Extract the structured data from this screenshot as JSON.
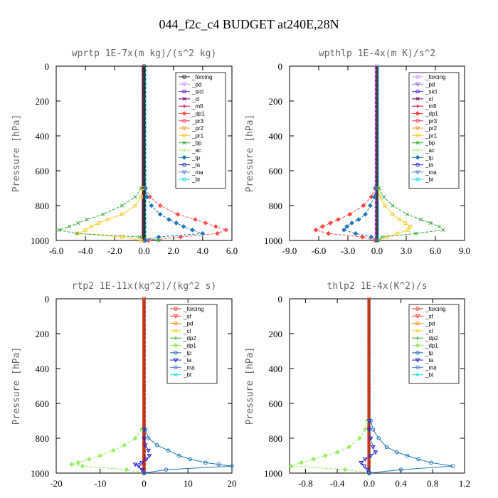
{
  "figure": {
    "title": "044_f2c_c4  BUDGET at240E,28N"
  },
  "chart_data": [
    {
      "type": "line",
      "title": "wprtp  1E-7x(m kg)/(s^2 kg)",
      "ylabel": "Pressure [hPa]",
      "xlim": [
        -6,
        6
      ],
      "ylim": [
        1000,
        0
      ],
      "xticks": [
        -6,
        -4,
        -2,
        0,
        2,
        4,
        6
      ],
      "xtick_labels": [
        "-6.0",
        "-4.0",
        "-2.0",
        "0.0",
        "2.0",
        "4.0",
        "6.0"
      ],
      "yticks": [
        0,
        200,
        400,
        600,
        800,
        1000
      ],
      "ytick_labels": [
        "0",
        "200",
        "400",
        "600",
        "800",
        "1000"
      ],
      "grid": false,
      "legend_position": "top-right",
      "levels": [
        700,
        750,
        800,
        850,
        880,
        900,
        920,
        940,
        960,
        980,
        1000
      ],
      "series": [
        {
          "name": "_forcing",
          "color": "#222222",
          "values": [
            0,
            0,
            0,
            0,
            0,
            0,
            0,
            0,
            0,
            0,
            0
          ]
        },
        {
          "name": "_pd",
          "color": "#cc99ff",
          "values": [
            0,
            0,
            0,
            0,
            0,
            0,
            0,
            0,
            0,
            0,
            0
          ]
        },
        {
          "name": "_sicl",
          "color": "#6633cc",
          "values": [
            0,
            0,
            0,
            0,
            0,
            0,
            0,
            0,
            0,
            0,
            0
          ]
        },
        {
          "name": "_cl",
          "color": "#660066",
          "values": [
            0,
            0,
            0,
            0,
            0,
            0,
            0,
            0,
            0,
            0,
            0
          ]
        },
        {
          "name": "_mfl",
          "color": "#cc0044",
          "values": [
            0,
            0,
            0,
            0,
            0,
            0,
            0,
            0,
            0,
            0,
            0
          ]
        },
        {
          "name": "_dp1",
          "color": "#ff5555",
          "values": [
            0.1,
            0.4,
            1.1,
            2.3,
            3.5,
            4.2,
            4.9,
            5.6,
            5.0,
            2.5,
            0.3
          ]
        },
        {
          "name": "_pr3",
          "color": "#ff3366",
          "values": [
            0,
            0,
            0,
            0,
            0,
            0,
            0,
            0,
            0,
            0,
            0
          ]
        },
        {
          "name": "_pr2",
          "color": "#ff9933",
          "values": [
            0,
            0,
            0,
            0,
            0,
            0,
            0,
            0,
            0,
            0,
            0
          ]
        },
        {
          "name": "_pr1",
          "color": "#ffcc33",
          "values": [
            -0.1,
            -0.2,
            -0.6,
            -1.5,
            -2.5,
            -3.1,
            -3.6,
            -4.0,
            -4.5,
            -1.5,
            -0.2
          ]
        },
        {
          "name": "_bp",
          "color": "#33aa33",
          "values": [
            -0.2,
            -0.6,
            -1.5,
            -2.8,
            -3.9,
            -4.5,
            -5.1,
            -5.8,
            -4.6,
            -0.3,
            1.0
          ]
        },
        {
          "name": "_ac",
          "color": "#99ee66",
          "values": [
            0,
            0,
            0,
            0,
            0,
            0,
            0,
            0,
            0,
            0,
            0
          ]
        },
        {
          "name": "_tp",
          "color": "#2277bb",
          "values": [
            0.1,
            0.2,
            0.5,
            1.1,
            1.7,
            2.2,
            2.7,
            3.3,
            4.0,
            1.0,
            0.1
          ]
        },
        {
          "name": "_ta",
          "color": "#2222cc",
          "values": [
            0,
            0,
            0,
            0,
            0,
            0,
            0,
            0,
            0,
            0,
            0
          ]
        },
        {
          "name": "_ma",
          "color": "#5588cc",
          "values": [
            0,
            0,
            0,
            0,
            0,
            0,
            0,
            0,
            0,
            0,
            0
          ]
        },
        {
          "name": "_bt",
          "color": "#22ddee",
          "values": [
            0,
            0,
            0,
            0,
            0,
            0,
            0,
            0,
            0,
            0,
            0
          ]
        }
      ]
    },
    {
      "type": "line",
      "title": "wpthlp  1E-4x(m K)/s^2",
      "ylabel": "Pressure [hPa]",
      "xlim": [
        -9,
        9
      ],
      "ylim": [
        1000,
        0
      ],
      "xticks": [
        -9,
        -6,
        -3,
        0,
        3,
        6,
        9
      ],
      "xtick_labels": [
        "-9.0",
        "-6.0",
        "-3.0",
        "0.0",
        "3.0",
        "6.0",
        "9.0"
      ],
      "yticks": [
        0,
        200,
        400,
        600,
        800,
        1000
      ],
      "ytick_labels": [
        "0",
        "200",
        "400",
        "600",
        "800",
        "1000"
      ],
      "grid": false,
      "legend_position": "top-right",
      "levels": [
        700,
        750,
        800,
        850,
        880,
        900,
        920,
        940,
        960,
        980,
        1000
      ],
      "series": [
        {
          "name": "_forcing",
          "color": "#cc99ff",
          "values": [
            0,
            0,
            0,
            0,
            0,
            0,
            0,
            0,
            0,
            0,
            0
          ]
        },
        {
          "name": "_pd",
          "color": "#9966cc",
          "values": [
            0,
            0,
            0,
            0,
            0,
            0,
            0,
            0,
            0,
            0,
            0
          ]
        },
        {
          "name": "_sicl",
          "color": "#6633cc",
          "values": [
            0,
            0,
            0,
            0,
            0,
            0,
            0,
            0,
            0,
            0,
            0
          ]
        },
        {
          "name": "_cl",
          "color": "#660066",
          "values": [
            0,
            0,
            0,
            0,
            0,
            0,
            0,
            0,
            0,
            0,
            0
          ]
        },
        {
          "name": "_mfl",
          "color": "#cc0044",
          "values": [
            0,
            0,
            0,
            0,
            0,
            0,
            0,
            0,
            0,
            0,
            0
          ]
        },
        {
          "name": "_dp1",
          "color": "#ff4444",
          "values": [
            -0.2,
            -0.6,
            -1.4,
            -2.8,
            -4.0,
            -4.8,
            -5.6,
            -6.3,
            -5.0,
            -1.5,
            -0.2
          ]
        },
        {
          "name": "_pr3",
          "color": "#ff3366",
          "values": [
            0,
            0,
            0,
            0,
            0,
            0,
            0,
            0,
            0,
            0,
            0
          ]
        },
        {
          "name": "_pr2",
          "color": "#ff9933",
          "values": [
            0,
            0,
            0,
            0,
            0,
            0,
            0,
            0,
            0,
            0,
            0
          ]
        },
        {
          "name": "_pr1",
          "color": "#ffcc33",
          "values": [
            0.1,
            0.3,
            0.8,
            1.6,
            2.3,
            2.9,
            3.4,
            3.2,
            2.1,
            1.0,
            0.1
          ]
        },
        {
          "name": "_bp",
          "color": "#33aa33",
          "values": [
            0.2,
            0.7,
            1.6,
            3.1,
            4.5,
            5.5,
            6.4,
            6.8,
            4.0,
            0.5,
            0.1
          ]
        },
        {
          "name": "_ac",
          "color": "#99ee66",
          "values": [
            0,
            0,
            0,
            0,
            0,
            0,
            0,
            0,
            0,
            0,
            0
          ]
        },
        {
          "name": "_tp",
          "color": "#2277bb",
          "values": [
            -0.1,
            -0.3,
            -0.7,
            -1.2,
            -1.9,
            -2.6,
            -3.1,
            -3.4,
            -2.2,
            -0.6,
            0
          ]
        },
        {
          "name": "_ta",
          "color": "#2222cc",
          "values": [
            0,
            0,
            0,
            0,
            0,
            0,
            0,
            0,
            0,
            0,
            0
          ]
        },
        {
          "name": "_ma",
          "color": "#5588cc",
          "values": [
            0,
            0,
            0,
            0,
            0,
            0,
            0,
            0,
            0,
            0,
            0
          ]
        },
        {
          "name": "_bt",
          "color": "#22ddee",
          "values": [
            0,
            0,
            0,
            0,
            0,
            0,
            0,
            0,
            0,
            0,
            0
          ]
        }
      ]
    },
    {
      "type": "line",
      "title": "rtp2  1E-11x(kg^2)/(kg^2 s)",
      "ylabel": "Pressure [hPa]",
      "xlim": [
        -20,
        20
      ],
      "ylim": [
        1000,
        0
      ],
      "xticks": [
        -20,
        -10,
        0,
        10,
        20
      ],
      "xtick_labels": [
        "-20",
        "-10",
        "0",
        "10",
        "20"
      ],
      "yticks": [
        0,
        200,
        400,
        600,
        800,
        1000
      ],
      "ytick_labels": [
        "0",
        "200",
        "400",
        "600",
        "800",
        "1000"
      ],
      "grid": false,
      "legend_position": "top-right",
      "levels": [
        750,
        800,
        840,
        870,
        900,
        920,
        940,
        950,
        960,
        980,
        1000
      ],
      "series": [
        {
          "name": "_forcing",
          "color": "#dd4433",
          "values": [
            0,
            0,
            0,
            0,
            0,
            0,
            0,
            0,
            0,
            0,
            0
          ]
        },
        {
          "name": "_sf",
          "color": "#ff3333",
          "values": [
            0,
            0,
            0,
            0,
            0,
            0,
            0,
            0,
            0,
            0,
            0
          ]
        },
        {
          "name": "_pd",
          "color": "#ff9933",
          "values": [
            0,
            0,
            0,
            0,
            0,
            0,
            0,
            0,
            0,
            0,
            0
          ]
        },
        {
          "name": "_cl",
          "color": "#ffcc33",
          "values": [
            0,
            0,
            0,
            0,
            0,
            0,
            0,
            0,
            0,
            0,
            0
          ]
        },
        {
          "name": "_dp2",
          "color": "#33aa33",
          "values": [
            0,
            0,
            0,
            0,
            0,
            0,
            0,
            0,
            0,
            0,
            0
          ]
        },
        {
          "name": "_dp1",
          "color": "#99ee66",
          "values": [
            -0.5,
            -2,
            -4.5,
            -7,
            -10,
            -12.5,
            -15,
            -16.5,
            -14,
            -4,
            0
          ]
        },
        {
          "name": "_tp",
          "color": "#2277bb",
          "values": [
            0.3,
            1,
            3,
            5.5,
            8,
            10.5,
            14,
            17,
            20,
            5,
            0
          ]
        },
        {
          "name": "_ta",
          "color": "#2222cc",
          "values": [
            0,
            0,
            0.3,
            1,
            1.2,
            0.5,
            -0.5,
            -2,
            -1.2,
            -0.5,
            0
          ]
        },
        {
          "name": "_ma",
          "color": "#5588cc",
          "values": [
            0,
            0,
            0,
            0,
            0,
            0,
            0,
            0,
            0,
            0,
            0
          ]
        },
        {
          "name": "_bt",
          "color": "#22ddee",
          "values": [
            0,
            0,
            0,
            0,
            0,
            0,
            0,
            0,
            0,
            0,
            0
          ]
        }
      ]
    },
    {
      "type": "line",
      "title": "thlp2  1E-4x(K^2)/s",
      "ylabel": "Pressure [hPa]",
      "xlim": [
        -1,
        1.2
      ],
      "ylim": [
        1000,
        0
      ],
      "xticks": [
        -0.8,
        -0.4,
        0,
        0.4,
        0.8,
        1.2
      ],
      "xtick_labels": [
        "-0.8",
        "-0.4",
        "0.0",
        "0.4",
        "0.8",
        "1.2"
      ],
      "yticks": [
        0,
        200,
        400,
        600,
        800,
        1000
      ],
      "ytick_labels": [
        "0",
        "200",
        "400",
        "600",
        "800",
        "1000"
      ],
      "grid": false,
      "legend_position": "top-right",
      "levels": [
        700,
        750,
        800,
        850,
        880,
        900,
        920,
        940,
        960,
        980,
        1000
      ],
      "series": [
        {
          "name": "_forcing",
          "color": "#dd4433",
          "values": [
            0,
            0,
            0,
            0,
            0,
            0,
            0,
            0,
            0,
            0,
            0
          ]
        },
        {
          "name": "_sf",
          "color": "#ff3333",
          "values": [
            0,
            0,
            0,
            0,
            0,
            0,
            0,
            0,
            0,
            0,
            0
          ]
        },
        {
          "name": "_pd",
          "color": "#ff9933",
          "values": [
            0,
            0,
            0,
            0,
            0,
            0,
            0,
            0,
            0,
            0,
            0
          ]
        },
        {
          "name": "_cl",
          "color": "#ffcc33",
          "values": [
            0,
            0,
            0,
            0,
            0,
            0,
            0,
            0,
            0,
            0,
            0
          ]
        },
        {
          "name": "_dp2",
          "color": "#33aa33",
          "values": [
            0,
            0,
            0,
            0,
            0,
            0,
            0,
            0,
            0,
            0,
            0
          ]
        },
        {
          "name": "_dp1",
          "color": "#99ee66",
          "values": [
            -0.02,
            -0.05,
            -0.12,
            -0.25,
            -0.4,
            -0.55,
            -0.7,
            -0.85,
            -0.98,
            -0.3,
            0
          ]
        },
        {
          "name": "_tp",
          "color": "#2277bb",
          "values": [
            0.02,
            0.05,
            0.12,
            0.22,
            0.35,
            0.48,
            0.62,
            0.78,
            1.05,
            0.4,
            0
          ]
        },
        {
          "name": "_ta",
          "color": "#2222cc",
          "values": [
            0,
            0,
            0.02,
            0.05,
            0.08,
            0.02,
            -0.05,
            -0.1,
            -0.06,
            -0.02,
            0
          ]
        },
        {
          "name": "_ma",
          "color": "#5588cc",
          "values": [
            0,
            0,
            0,
            0,
            0,
            0,
            0,
            0,
            0,
            0,
            0
          ]
        },
        {
          "name": "_bt",
          "color": "#22ddee",
          "values": [
            0,
            0,
            0,
            0,
            0,
            0,
            0,
            0,
            0,
            0,
            0
          ]
        }
      ]
    }
  ]
}
